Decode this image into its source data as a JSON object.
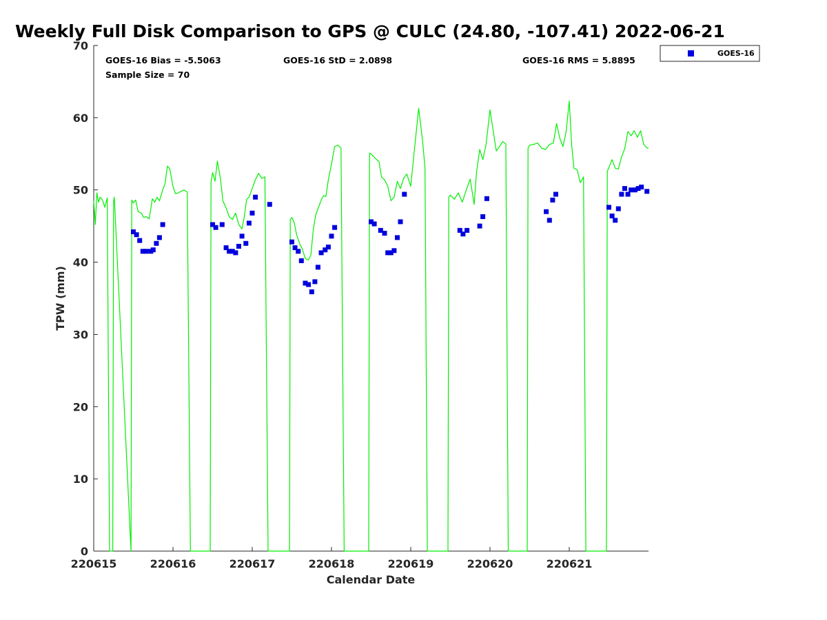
{
  "chart_data": {
    "type": "scatter",
    "title": "Weekly Full Disk Comparison to GPS @ CULC (24.80, -107.41) 2022-06-21",
    "xlabel": "Calendar Date",
    "ylabel": "TPW (mm)",
    "xlim": [
      0,
      7
    ],
    "ylim": [
      0,
      70
    ],
    "yticks": [
      0,
      10,
      20,
      30,
      40,
      50,
      60,
      70
    ],
    "xticks": [
      0,
      1,
      2,
      3,
      4,
      5,
      6
    ],
    "xticklabels": [
      "220615",
      "220616",
      "220617",
      "220618",
      "220619",
      "220620",
      "220621"
    ],
    "stats": {
      "bias": "GOES-16 Bias = -5.5063",
      "std": "GOES-16 StD = 2.0898",
      "rms": "GOES-16 RMS = 5.8895",
      "sample": "Sample Size = 70"
    },
    "legend": {
      "position": "outside-top-right",
      "entries": [
        "GOES-16"
      ]
    },
    "series": [
      {
        "name": "GOES-16",
        "kind": "scatter",
        "color": "#0000dd",
        "marker": "square",
        "x": [
          0.5,
          0.54,
          0.58,
          0.62,
          0.66,
          0.72,
          0.75,
          0.79,
          0.83,
          0.87,
          1.5,
          1.54,
          1.62,
          1.67,
          1.71,
          1.75,
          1.79,
          1.83,
          1.87,
          1.92,
          1.96,
          2.0,
          2.04,
          2.22,
          2.5,
          2.54,
          2.58,
          2.62,
          2.67,
          2.71,
          2.75,
          2.79,
          2.83,
          2.87,
          2.92,
          2.96,
          3.0,
          3.04,
          3.5,
          3.54,
          3.62,
          3.67,
          3.71,
          3.75,
          3.79,
          3.83,
          3.87,
          3.92,
          4.62,
          4.66,
          4.71,
          4.87,
          4.91,
          4.96,
          5.71,
          5.75,
          5.79,
          5.83,
          6.5,
          6.54,
          6.58,
          6.62,
          6.66,
          6.7,
          6.74,
          6.78,
          6.83,
          6.87,
          6.91,
          6.98
        ],
        "y": [
          44.2,
          43.8,
          43.0,
          41.5,
          41.5,
          41.5,
          41.7,
          42.6,
          43.4,
          45.2,
          45.2,
          44.8,
          45.2,
          42.0,
          41.5,
          41.5,
          41.3,
          42.2,
          43.6,
          42.6,
          45.4,
          46.8,
          49.0,
          48.0,
          42.8,
          42.0,
          41.5,
          40.2,
          37.1,
          36.9,
          35.9,
          37.3,
          39.3,
          41.3,
          41.7,
          42.1,
          43.6,
          44.8,
          45.6,
          45.3,
          44.4,
          44.0,
          41.3,
          41.3,
          41.6,
          43.4,
          45.6,
          49.4,
          44.4,
          43.9,
          44.4,
          45.0,
          46.3,
          48.8,
          47.0,
          45.8,
          48.6,
          49.4,
          47.6,
          46.4,
          45.8,
          47.4,
          49.4,
          50.2,
          49.4,
          50.0,
          50.0,
          50.2,
          50.4,
          49.8
        ]
      },
      {
        "name": "",
        "kind": "line",
        "color": "#00ee00",
        "x": [
          0.0,
          0.02,
          0.04,
          0.06,
          0.08,
          0.11,
          0.14,
          0.17,
          0.2,
          0.22,
          0.24,
          0.25,
          0.26,
          0.47,
          0.48,
          0.5,
          0.53,
          0.56,
          0.6,
          0.63,
          0.66,
          0.7,
          0.74,
          0.77,
          0.8,
          0.83,
          0.87,
          0.9,
          0.93,
          0.96,
          1.0,
          1.03,
          1.07,
          1.1,
          1.14,
          1.18,
          1.22,
          1.24,
          1.25,
          1.26,
          1.47,
          1.48,
          1.5,
          1.53,
          1.56,
          1.6,
          1.63,
          1.67,
          1.71,
          1.75,
          1.79,
          1.83,
          1.87,
          1.9,
          1.93,
          1.96,
          2.0,
          2.04,
          2.08,
          2.12,
          2.16,
          2.2,
          2.22,
          2.24,
          2.25,
          2.47,
          2.48,
          2.5,
          2.53,
          2.56,
          2.6,
          2.63,
          2.67,
          2.71,
          2.74,
          2.77,
          2.8,
          2.83,
          2.87,
          2.9,
          2.93,
          2.96,
          3.0,
          3.04,
          3.08,
          3.12,
          3.16,
          3.2,
          3.24,
          3.26,
          3.27,
          3.47,
          3.48,
          3.5,
          3.55,
          3.6,
          3.63,
          3.67,
          3.71,
          3.75,
          3.79,
          3.83,
          3.87,
          3.91,
          3.95,
          4.0,
          4.05,
          4.1,
          4.15,
          4.18,
          4.21,
          4.24,
          4.25,
          4.47,
          4.48,
          4.5,
          4.55,
          4.6,
          4.65,
          4.7,
          4.75,
          4.8,
          4.83,
          4.87,
          4.91,
          4.95,
          5.0,
          5.04,
          5.08,
          5.12,
          5.16,
          5.2,
          5.23,
          5.24,
          5.25,
          5.47,
          5.48,
          5.5,
          5.55,
          5.6,
          5.65,
          5.7,
          5.75,
          5.8,
          5.84,
          5.88,
          5.92,
          5.96,
          6.0,
          6.03,
          6.06,
          6.1,
          6.14,
          6.18,
          6.21,
          6.22,
          6.23,
          6.47,
          6.48,
          6.5,
          6.54,
          6.58,
          6.62,
          6.66,
          6.7,
          6.74,
          6.78,
          6.82,
          6.86,
          6.9,
          6.94,
          6.98,
          7.0
        ],
        "y": [
          48.5,
          45.2,
          49.6,
          48.3,
          49.0,
          48.6,
          47.6,
          48.9,
          0,
          0,
          0,
          48.4,
          49.0,
          0,
          48.6,
          48.2,
          48.6,
          47.0,
          46.8,
          46.2,
          46.3,
          46.0,
          48.8,
          48.3,
          49.0,
          48.5,
          50.0,
          50.9,
          53.3,
          52.9,
          50.5,
          49.5,
          49.6,
          49.8,
          50.0,
          49.7,
          0,
          0,
          0,
          0,
          0,
          51.0,
          52.4,
          51.2,
          54.0,
          51.5,
          48.5,
          47.5,
          46.3,
          45.9,
          46.8,
          45.2,
          44.6,
          46.3,
          48.7,
          49.0,
          50.2,
          51.4,
          52.3,
          51.6,
          51.8,
          0,
          0,
          0,
          0,
          0,
          45.9,
          46.2,
          45.5,
          43.8,
          42.5,
          41.9,
          40.5,
          40.3,
          41.0,
          44.5,
          46.5,
          47.4,
          48.6,
          49.2,
          49.1,
          51.4,
          53.6,
          56.0,
          56.2,
          55.8,
          0,
          0,
          0,
          0,
          0,
          0,
          55.1,
          55.0,
          54.4,
          53.9,
          51.8,
          51.4,
          50.5,
          48.5,
          49.0,
          51.2,
          50.2,
          51.6,
          52.2,
          50.5,
          56.0,
          61.3,
          56.7,
          53.0,
          0,
          0,
          0,
          0,
          49.0,
          49.3,
          48.7,
          49.6,
          48.3,
          50.0,
          51.5,
          48.0,
          52.5,
          55.6,
          54.2,
          56.3,
          61.1,
          58.2,
          55.4,
          56.0,
          56.7,
          56.4,
          0,
          0,
          0,
          0,
          55.8,
          56.2,
          56.3,
          56.5,
          55.8,
          55.6,
          56.3,
          56.5,
          59.2,
          57.2,
          56.0,
          58.0,
          62.3,
          56.2,
          53.0,
          52.8,
          51.0,
          51.8,
          0,
          0,
          0,
          0,
          52.6,
          53.1,
          54.2,
          53.0,
          52.9,
          54.6,
          55.7,
          58.1,
          57.5,
          58.2,
          57.3,
          58.2,
          56.3,
          55.8,
          55.8
        ]
      }
    ]
  }
}
